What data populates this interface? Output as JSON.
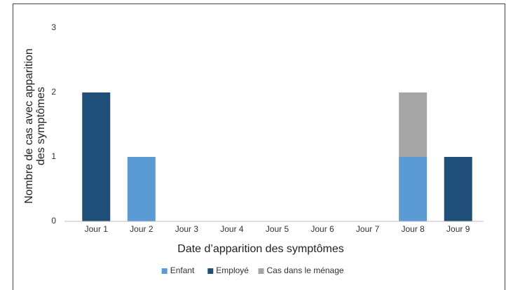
{
  "chart_data": {
    "type": "stacked_bar",
    "x_label": "Date d’apparition des symptômes",
    "y_label": [
      "Nombre de cas avec apparition",
      "des symptômes"
    ],
    "categories": [
      "Jour 1",
      "Jour 2",
      "Jour 3",
      "Jour 4",
      "Jour 5",
      "Jour 6",
      "Jour 7",
      "Jour 8",
      "Jour 9"
    ],
    "series": [
      {
        "name": "Enfant",
        "color": "#5b9bd5",
        "values": [
          0,
          1,
          0,
          0,
          0,
          0,
          0,
          1,
          0
        ]
      },
      {
        "name": "Employé",
        "color": "#1f4e79",
        "values": [
          2,
          0,
          0,
          0,
          0,
          0,
          0,
          0,
          1
        ]
      },
      {
        "name": "Cas dans le ménage",
        "color": "#a5a5a5",
        "values": [
          0,
          0,
          0,
          0,
          0,
          0,
          0,
          1,
          0
        ]
      }
    ],
    "ylim": [
      0,
      3
    ],
    "yticks": [
      0,
      1,
      2,
      3
    ],
    "grid": false,
    "legend": "bottom"
  }
}
